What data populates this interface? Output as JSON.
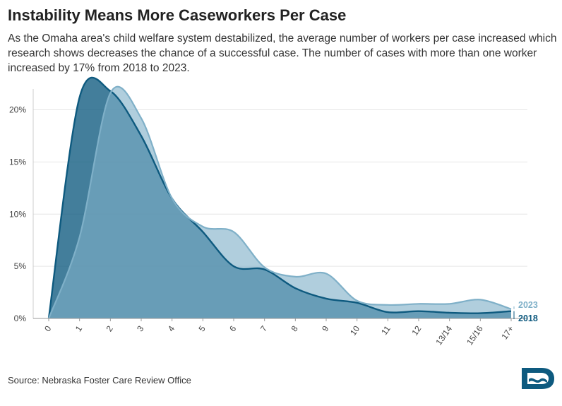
{
  "title": "Instability Means More Caseworkers Per Case",
  "subtitle": "As the Omaha area's child welfare system destabilized, the average number of workers per case increased which research shows decreases the chance of a successful case. The number of cases with more than one worker increased by 17% from 2018 to 2023.",
  "source": "Source: Nebraska Foster Care Review Office",
  "logo_icon": "organization-logo-icon",
  "colors": {
    "series_2018": "#0e5a7f",
    "series_2023": "#7fb0c8",
    "grid": "#e6e6e6",
    "axis_text": "#444444"
  },
  "chart_data": {
    "type": "area",
    "categories": [
      "0",
      "1",
      "2",
      "3",
      "4",
      "5",
      "6",
      "7",
      "8",
      "9",
      "10",
      "11",
      "12",
      "13/14",
      "15/16",
      "17+"
    ],
    "ylim": [
      0,
      22
    ],
    "yticks": [
      0,
      5,
      10,
      15,
      20
    ],
    "ytick_labels": [
      "0%",
      "5%",
      "10%",
      "15%",
      "20%"
    ],
    "grid": true,
    "series": [
      {
        "name": "2018",
        "values": [
          0,
          21.2,
          21.8,
          17.5,
          11.5,
          8.3,
          5.0,
          4.7,
          2.9,
          1.9,
          1.5,
          0.6,
          0.7,
          0.55,
          0.5,
          0.7
        ]
      },
      {
        "name": "2023",
        "values": [
          0,
          7.8,
          21.6,
          19.2,
          11.5,
          8.8,
          8.3,
          4.9,
          4.0,
          4.3,
          1.7,
          1.3,
          1.4,
          1.4,
          1.8,
          0.9
        ]
      }
    ]
  }
}
